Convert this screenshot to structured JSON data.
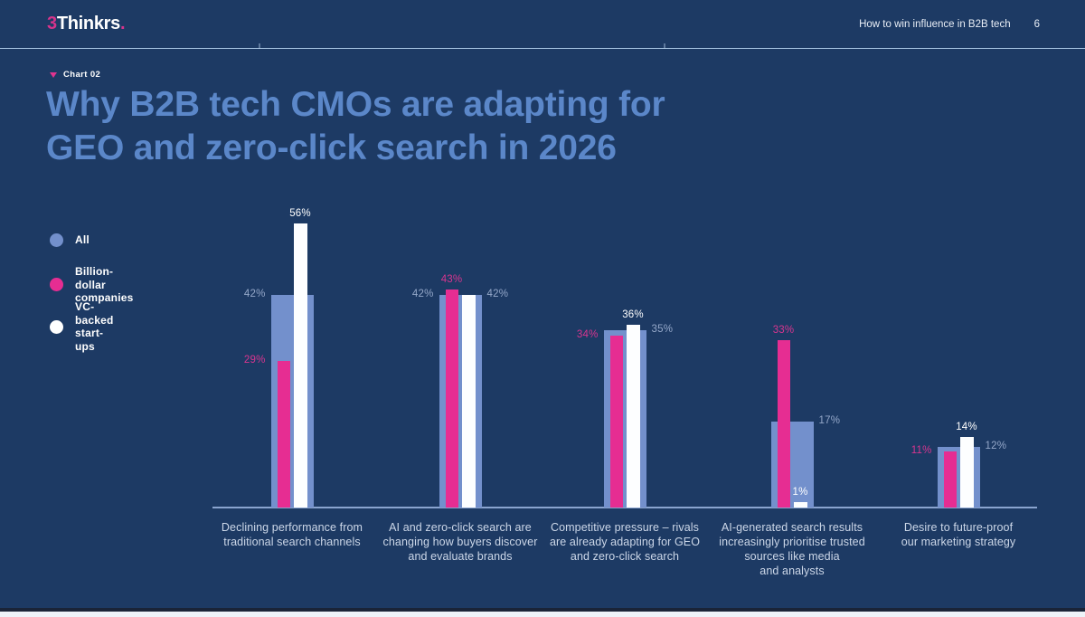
{
  "header": {
    "logo": {
      "prefix": "3",
      "name": "Thinkrs",
      "suffix": "."
    },
    "right_text": "How to win influence in B2B tech",
    "page_number": "6"
  },
  "kicker": {
    "label": "Chart 02"
  },
  "title": {
    "line1": "Why B2B tech CMOs are adapting for",
    "line2": "GEO and zero-click search in 2026"
  },
  "legend": [
    {
      "id": "all",
      "lines": [
        "All"
      ],
      "color": "#7390cc"
    },
    {
      "id": "billion",
      "lines": [
        "Billion-dollar",
        "companies"
      ],
      "color": "#e62d92"
    },
    {
      "id": "vc",
      "lines": [
        "VC-backed",
        "start-ups"
      ],
      "color": "#ffffff"
    }
  ],
  "colors": {
    "background": "#1d3a64",
    "title": "#5b87c9",
    "bar_all": "#7390cc",
    "bar_billion": "#e62d92",
    "bar_vc": "#fdfeff",
    "value_label_muted": "#95a8c9",
    "value_label_pink": "#d8358f",
    "value_label_white": "#ffffff",
    "category_label": "#ccd7e8",
    "baseline": "#8aa4cf",
    "header_divider": "#abc7e5"
  },
  "chart_data": {
    "type": "bar",
    "unit": "%",
    "ylim": [
      0,
      60
    ],
    "grid": false,
    "legend_position": "left",
    "categories": [
      [
        "Declining performance from",
        "traditional search channels"
      ],
      [
        "AI and zero-click search are",
        "changing how buyers discover",
        "and evaluate brands"
      ],
      [
        "Competitive pressure – rivals",
        "are already adapting for GEO",
        "and zero-click search"
      ],
      [
        "AI-generated search results",
        "increasingly prioritise trusted",
        "sources like media",
        "and analysts"
      ],
      [
        "Desire to future-proof",
        "our marketing strategy"
      ]
    ],
    "series": [
      {
        "id": "all",
        "name": "All",
        "values": [
          42,
          42,
          35,
          17,
          12
        ]
      },
      {
        "id": "billion",
        "name": "Billion-dollar companies",
        "values": [
          29,
          43,
          34,
          33,
          11
        ]
      },
      {
        "id": "vc",
        "name": "VC-backed start-ups",
        "values": [
          56,
          42,
          36,
          1,
          14
        ]
      }
    ],
    "value_label_placement": [
      {
        "all": "left",
        "billion": "left",
        "vc": "top"
      },
      {
        "all": "left",
        "billion": "top",
        "vc": "right"
      },
      {
        "all": "right",
        "billion": "left",
        "vc": "top"
      },
      {
        "all": "right",
        "billion": "top",
        "vc": "top"
      },
      {
        "all": "right",
        "billion": "left",
        "vc": "top"
      }
    ]
  }
}
